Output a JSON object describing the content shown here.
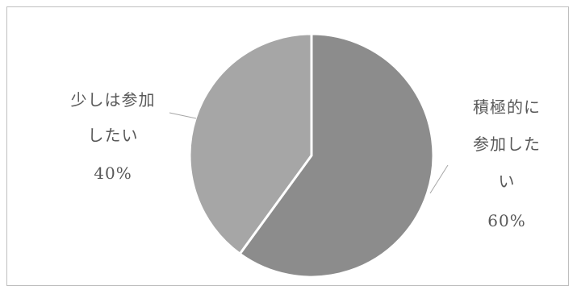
{
  "chart_data": {
    "type": "pie",
    "title": "",
    "slices": [
      {
        "label_lines": [
          "積極的に",
          "参加した",
          "い"
        ],
        "percent_label": "60%",
        "value": 60,
        "color": "#8c8c8c"
      },
      {
        "label_lines": [
          "少しは参加",
          "したい"
        ],
        "percent_label": "40%",
        "value": 40,
        "color": "#a6a6a6"
      }
    ]
  }
}
